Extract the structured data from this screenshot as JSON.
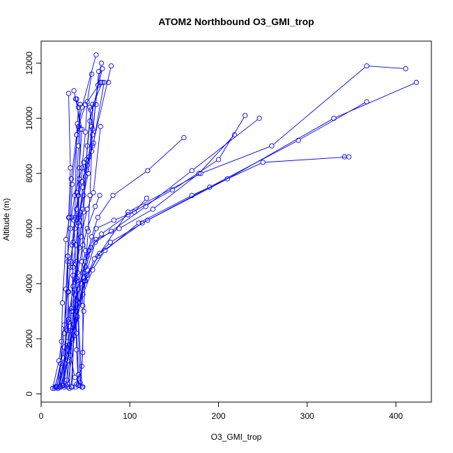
{
  "chart_data": {
    "type": "line",
    "title": "ATOM2 Northbound O3_GMI_trop",
    "xlabel": "O3_GMI_trop",
    "ylabel": "Altitude (m)",
    "xlim": [
      0,
      440
    ],
    "ylim": [
      -300,
      12800
    ],
    "x_ticks": [
      0,
      100,
      200,
      300,
      400
    ],
    "y_ticks": [
      0,
      2000,
      4000,
      6000,
      8000,
      10000,
      12000
    ],
    "grid": false,
    "legend": "none",
    "line_color": "#0000ff",
    "marker": "open-circle",
    "series": [
      {
        "values": [
          [
            47,
            250
          ],
          [
            38,
            600
          ],
          [
            33,
            1400
          ],
          [
            36,
            3000
          ],
          [
            50,
            5200
          ],
          [
            44,
            6600
          ],
          [
            52,
            8300
          ],
          [
            58,
            9600
          ],
          [
            64,
            11200
          ],
          [
            68,
            12000
          ]
        ]
      },
      {
        "values": [
          [
            30,
            250
          ],
          [
            29,
            500
          ],
          [
            30,
            1200
          ],
          [
            31,
            2600
          ],
          [
            30,
            4800
          ],
          [
            31,
            6400
          ],
          [
            33,
            8200
          ],
          [
            31,
            10900
          ]
        ]
      },
      {
        "values": [
          [
            39,
            250
          ],
          [
            42,
            700
          ],
          [
            40,
            2200
          ],
          [
            38,
            3800
          ],
          [
            44,
            6100
          ],
          [
            40,
            7300
          ],
          [
            42,
            9000
          ],
          [
            44,
            10500
          ],
          [
            39,
            10700
          ]
        ]
      },
      {
        "values": [
          [
            26,
            250
          ],
          [
            30,
            5000
          ],
          [
            34,
            6400
          ],
          [
            38,
            7200
          ],
          [
            46,
            8200
          ],
          [
            50,
            9500
          ],
          [
            52,
            10600
          ],
          [
            57,
            11600
          ]
        ]
      },
      {
        "values": [
          [
            34,
            250
          ],
          [
            37,
            2100
          ],
          [
            36,
            4300
          ],
          [
            35,
            5400
          ],
          [
            38,
            6400
          ],
          [
            40,
            9400
          ],
          [
            41,
            9800
          ],
          [
            42,
            10400
          ]
        ]
      },
      {
        "values": [
          [
            44,
            400
          ],
          [
            40,
            4100
          ],
          [
            42,
            7200
          ],
          [
            48,
            8400
          ],
          [
            54,
            8600
          ],
          [
            57,
            9700
          ],
          [
            55,
            10400
          ],
          [
            62,
            10500
          ]
        ]
      },
      {
        "values": [
          [
            42,
            300
          ],
          [
            40,
            1600
          ],
          [
            39,
            3000
          ],
          [
            41,
            4400
          ],
          [
            42,
            6200
          ],
          [
            43,
            7800
          ],
          [
            44,
            9600
          ],
          [
            40,
            10700
          ]
        ]
      },
      {
        "values": [
          [
            35,
            250
          ],
          [
            38,
            3600
          ],
          [
            39,
            4700
          ],
          [
            37,
            6300
          ],
          [
            42,
            7200
          ],
          [
            43,
            8200
          ],
          [
            46,
            9600
          ],
          [
            37,
            11000
          ]
        ]
      },
      {
        "values": [
          [
            40,
            350
          ],
          [
            46,
            1000
          ],
          [
            48,
            3000
          ],
          [
            50,
            4600
          ],
          [
            53,
            5900
          ],
          [
            55,
            7200
          ],
          [
            57,
            8800
          ],
          [
            58,
            10500
          ]
        ]
      },
      {
        "values": [
          [
            44,
            300
          ],
          [
            47,
            1500
          ],
          [
            47,
            3200
          ],
          [
            46,
            4800
          ],
          [
            48,
            6600
          ],
          [
            50,
            7900
          ],
          [
            52,
            9000
          ],
          [
            56,
            10300
          ],
          [
            69,
            11300
          ]
        ]
      },
      {
        "values": [
          [
            46,
            250
          ],
          [
            40,
            4200
          ],
          [
            43,
            5300
          ],
          [
            47,
            6700
          ],
          [
            51,
            8100
          ],
          [
            59,
            9100
          ],
          [
            71,
            11300
          ],
          [
            76,
            11300
          ]
        ]
      },
      {
        "values": [
          [
            21,
            250
          ],
          [
            23,
            1900
          ],
          [
            24,
            3300
          ],
          [
            28,
            5600
          ],
          [
            32,
            6400
          ],
          [
            34,
            7800
          ],
          [
            40,
            9400
          ],
          [
            46,
            10400
          ],
          [
            62,
            12300
          ]
        ]
      },
      {
        "values": [
          [
            18,
            250
          ],
          [
            22,
            1100
          ],
          [
            26,
            2200
          ],
          [
            28,
            3800
          ],
          [
            30,
            5000
          ],
          [
            33,
            6000
          ],
          [
            35,
            7600
          ],
          [
            42,
            9700
          ],
          [
            50,
            10500
          ],
          [
            67,
            11300
          ]
        ]
      },
      {
        "values": [
          [
            24,
            300
          ],
          [
            29,
            2300
          ],
          [
            31,
            3700
          ],
          [
            33,
            4800
          ],
          [
            38,
            6000
          ],
          [
            42,
            6400
          ],
          [
            48,
            7200
          ],
          [
            53,
            8000
          ],
          [
            58,
            9400
          ],
          [
            65,
            11700
          ]
        ]
      },
      {
        "values": [
          [
            32,
            200
          ],
          [
            34,
            3100
          ],
          [
            36,
            4600
          ],
          [
            39,
            5400
          ],
          [
            43,
            6500
          ],
          [
            47,
            7500
          ],
          [
            51,
            8500
          ],
          [
            55,
            9900
          ],
          [
            69,
            11800
          ]
        ]
      },
      {
        "values": [
          [
            13,
            200
          ],
          [
            20,
            1200
          ],
          [
            26,
            2500
          ],
          [
            30,
            3700
          ],
          [
            33,
            4600
          ],
          [
            36,
            5500
          ],
          [
            40,
            6700
          ],
          [
            46,
            7700
          ],
          [
            58,
            9000
          ],
          [
            79,
            11900
          ]
        ]
      },
      {
        "values": [
          [
            15,
            200
          ],
          [
            25,
            1300
          ],
          [
            31,
            2700
          ],
          [
            36,
            3900
          ],
          [
            40,
            4800
          ],
          [
            45,
            5700
          ],
          [
            52,
            6700
          ],
          [
            59,
            7300
          ],
          [
            67,
            9700
          ]
        ]
      },
      {
        "values": [
          [
            16,
            250
          ],
          [
            26,
            1700
          ],
          [
            34,
            3000
          ],
          [
            40,
            4200
          ],
          [
            47,
            5400
          ],
          [
            52,
            6000
          ],
          [
            61,
            6800
          ],
          [
            66,
            7200
          ]
        ]
      },
      {
        "values": [
          [
            19,
            200
          ],
          [
            30,
            1900
          ],
          [
            40,
            3400
          ],
          [
            47,
            4400
          ],
          [
            54,
            5200
          ],
          [
            62,
            6000
          ],
          [
            82,
            6300
          ],
          [
            105,
            6600
          ],
          [
            119,
            7100
          ]
        ]
      },
      {
        "values": [
          [
            21,
            250
          ],
          [
            33,
            2300
          ],
          [
            42,
            3800
          ],
          [
            50,
            4800
          ],
          [
            57,
            5700
          ],
          [
            64,
            6400
          ],
          [
            81,
            7200
          ],
          [
            120,
            8100
          ],
          [
            161,
            9300
          ]
        ]
      },
      {
        "values": [
          [
            24,
            300
          ],
          [
            36,
            2400
          ],
          [
            45,
            4000
          ],
          [
            52,
            5000
          ],
          [
            62,
            5600
          ],
          [
            88,
            6000
          ],
          [
            126,
            6700
          ],
          [
            178,
            8000
          ],
          [
            218,
            9400
          ]
        ]
      },
      {
        "values": [
          [
            28,
            300
          ],
          [
            39,
            2700
          ],
          [
            48,
            4200
          ],
          [
            56,
            5300
          ],
          [
            68,
            5800
          ],
          [
            98,
            6500
          ],
          [
            148,
            7400
          ],
          [
            200,
            8500
          ],
          [
            230,
            10100
          ]
        ]
      },
      {
        "values": [
          [
            30,
            350
          ],
          [
            41,
            2800
          ],
          [
            52,
            4500
          ],
          [
            61,
            5500
          ],
          [
            79,
            5900
          ],
          [
            118,
            6800
          ],
          [
            170,
            8100
          ],
          [
            246,
            10000
          ]
        ]
      },
      {
        "values": [
          [
            17,
            250
          ],
          [
            29,
            1400
          ],
          [
            40,
            3000
          ],
          [
            50,
            4100
          ],
          [
            64,
            5000
          ],
          [
            98,
            6600
          ],
          [
            180,
            8000
          ],
          [
            260,
            9000
          ],
          [
            367,
            11900
          ],
          [
            411,
            11800
          ]
        ]
      },
      {
        "values": [
          [
            22,
            250
          ],
          [
            35,
            2000
          ],
          [
            47,
            3600
          ],
          [
            58,
            4500
          ],
          [
            72,
            5200
          ],
          [
            110,
            6200
          ],
          [
            170,
            7200
          ],
          [
            250,
            8400
          ],
          [
            347,
            8600
          ],
          [
            342,
            8600
          ]
        ]
      },
      {
        "values": [
          [
            19,
            200
          ],
          [
            32,
            1800
          ],
          [
            43,
            3300
          ],
          [
            52,
            4300
          ],
          [
            66,
            5100
          ],
          [
            114,
            6200
          ],
          [
            190,
            7500
          ],
          [
            290,
            9200
          ],
          [
            367,
            10600
          ]
        ]
      },
      {
        "values": [
          [
            25,
            300
          ],
          [
            37,
            2500
          ],
          [
            49,
            4100
          ],
          [
            60,
            4900
          ],
          [
            78,
            5500
          ],
          [
            120,
            6300
          ],
          [
            210,
            7800
          ],
          [
            330,
            10000
          ],
          [
            423,
            11300
          ]
        ]
      }
    ]
  }
}
